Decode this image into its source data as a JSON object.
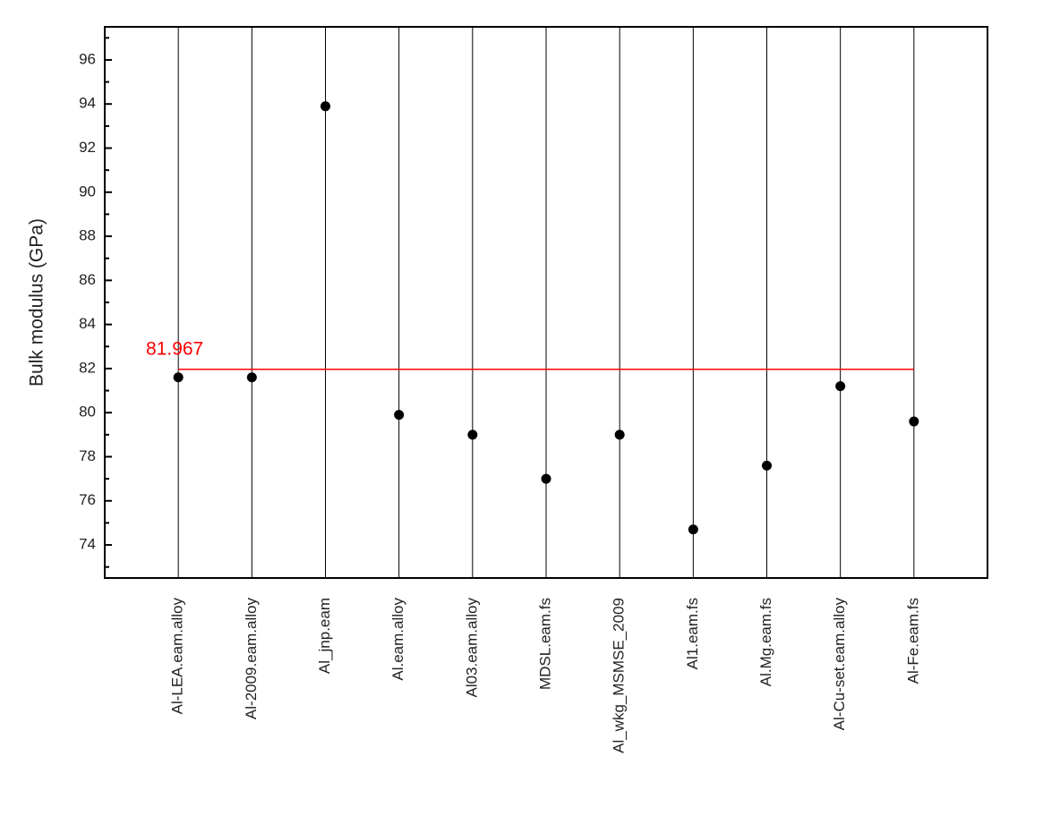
{
  "chart_data": {
    "type": "scatter",
    "ylabel": "Bulk modulus (GPa)",
    "categories": [
      "Al-LEA.eam.alloy",
      "Al-2009.eam.alloy",
      "Al_jnp.eam",
      "Al.eam.alloy",
      "Al03.eam.alloy",
      "MDSL.eam.fs",
      "Al_wkg_MSMSE_2009",
      "Al1.eam.fs",
      "Al.Mg.eam.fs",
      "Al-Cu-set.eam.alloy",
      "Al-Fe.eam.fs"
    ],
    "values": [
      81.6,
      81.6,
      93.9,
      79.9,
      79.0,
      77.0,
      79.0,
      74.7,
      77.6,
      81.2,
      79.6
    ],
    "color": "#000000",
    "ylim": [
      72.5,
      97.5
    ],
    "yticks": [
      74,
      76,
      78,
      80,
      82,
      84,
      86,
      88,
      90,
      92,
      94,
      96
    ],
    "yminorticks": [
      73,
      75,
      77,
      79,
      81,
      83,
      85,
      87,
      89,
      91,
      93,
      95,
      97
    ],
    "reference_line": {
      "value": 81.967,
      "label": "81.967",
      "color": "#ff0000"
    },
    "category_lines": true
  }
}
